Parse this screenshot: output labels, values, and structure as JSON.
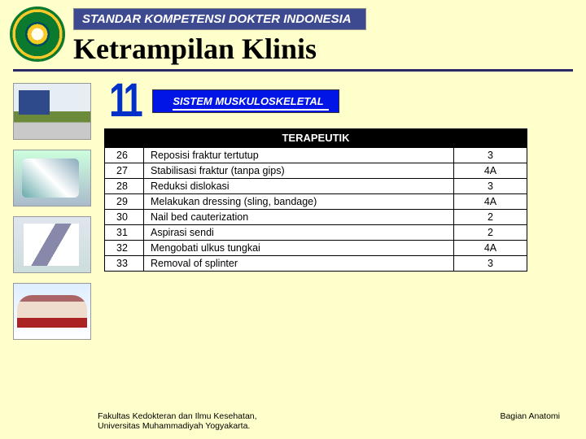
{
  "header": {
    "banner": "STANDAR KOMPETENSI DOKTER INDONESIA",
    "title": "Ketrampilan Klinis"
  },
  "chapter": {
    "number": "11",
    "system": "SISTEM MUSKULOSKELETAL"
  },
  "table": {
    "section_title": "TERAPEUTIK",
    "rows": [
      {
        "no": "26",
        "skill": "Reposisi fraktur tertutup",
        "level": "3"
      },
      {
        "no": "27",
        "skill": "Stabilisasi fraktur (tanpa gips)",
        "level": "4A"
      },
      {
        "no": "28",
        "skill": "Reduksi dislokasi",
        "level": "3"
      },
      {
        "no": "29",
        "skill": "Melakukan dressing (sling, bandage)",
        "level": "4A"
      },
      {
        "no": "30",
        "skill": "Nail bed cauterization",
        "level": "2"
      },
      {
        "no": "31",
        "skill": "Aspirasi sendi",
        "level": "2"
      },
      {
        "no": "32",
        "skill": "Mengobati ulkus tungkai",
        "level": "4A"
      },
      {
        "no": "33",
        "skill": "Removal of splinter",
        "level": "3"
      }
    ]
  },
  "footer": {
    "left_line1": "Fakultas Kedokteran dan Ilmu Kesehatan,",
    "left_line2": "Universitas Muhammadiyah Yogyakarta.",
    "right": "Bagian Anatomi"
  },
  "colors": {
    "page_bg": "#ffffcc",
    "banner_bg": "#3d4a8f",
    "system_bg": "#0015e6",
    "eleven_color": "#0030c8",
    "divider": "#2a2a66",
    "table_header_bg": "#000000"
  }
}
